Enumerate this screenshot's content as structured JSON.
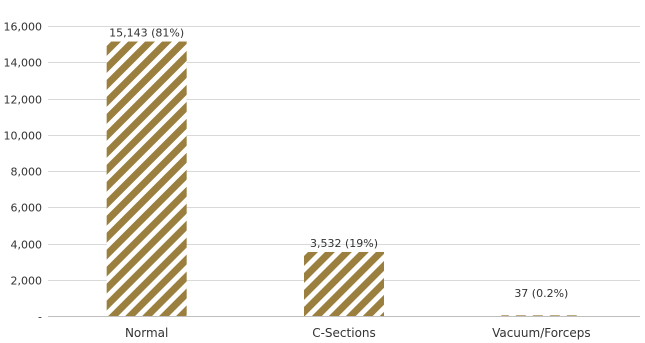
{
  "chart_data": {
    "type": "bar",
    "title": "",
    "xlabel": "",
    "ylabel": "",
    "categories": [
      "Normal",
      "C-Sections",
      "Vacuum/Forceps"
    ],
    "values": [
      15143,
      3532,
      37
    ],
    "data_labels": [
      "15,143 (81%)",
      "3,532 (19%)",
      "37 (0.2%)"
    ],
    "ylim": [
      0,
      16000
    ],
    "yticks": [
      0,
      2000,
      4000,
      6000,
      8000,
      10000,
      12000,
      14000,
      16000
    ],
    "ytick_labels": [
      "-",
      "2,000",
      "4,000",
      "6,000",
      "8,000",
      "10,000",
      "12,000",
      "14,000",
      "16,000"
    ],
    "grid": true,
    "legend": "none",
    "bar_color": "#9a7f3f",
    "bar_stripe_color": "#ffffff",
    "bar_pattern": "diagonal-stripes"
  }
}
